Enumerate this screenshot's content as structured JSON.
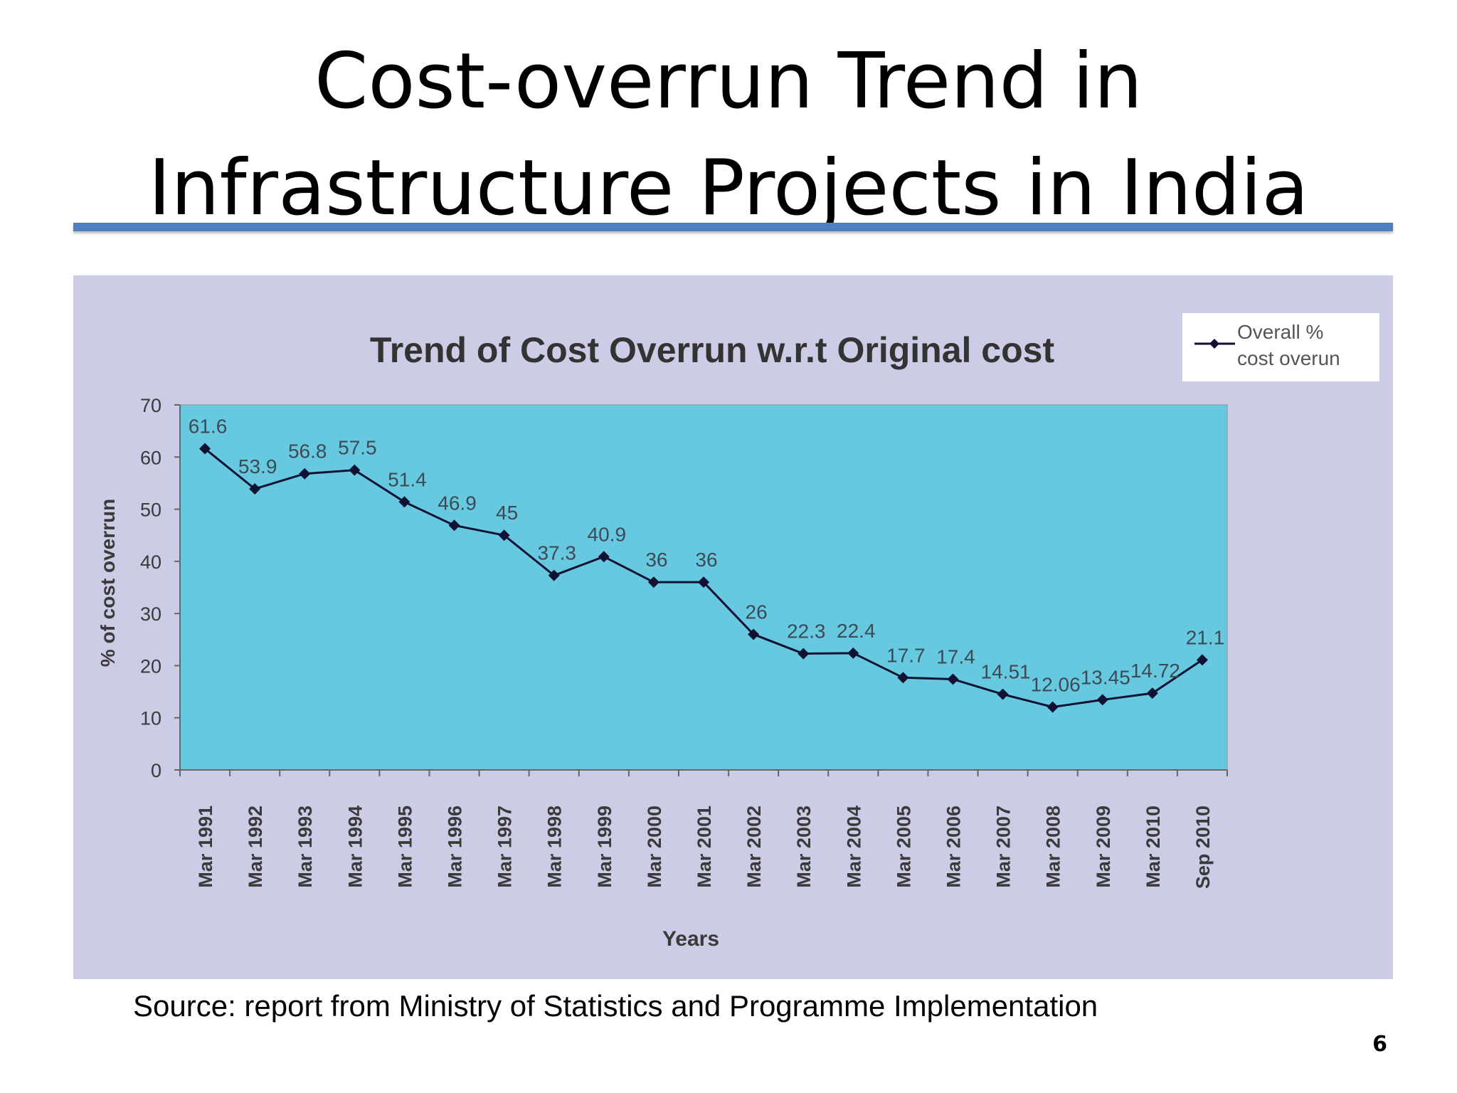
{
  "slide": {
    "title_line1": "Cost-overrun Trend in",
    "title_line2": "Infrastructure Projects in India",
    "source": "Source: report from Ministry of Statistics and Programme Implementation",
    "page_number": "6"
  },
  "colors": {
    "title_rule": "#4f7fc0",
    "panel_background": "#cccce6",
    "plot_background": "#66c9e0",
    "series_line": "#111133",
    "axis_text": "#3a3a3a"
  },
  "chart_data": {
    "type": "line",
    "title": "Trend of Cost Overrun w.r.t Original cost",
    "xlabel": "Years",
    "ylabel": "% of cost overrun",
    "ylim": [
      0,
      70
    ],
    "yticks": [
      0,
      10,
      20,
      30,
      40,
      50,
      60,
      70
    ],
    "grid": false,
    "legend_position": "top-right",
    "categories": [
      "Mar 1991",
      "Mar 1992",
      "Mar 1993",
      "Mar 1994",
      "Mar 1995",
      "Mar 1996",
      "Mar 1997",
      "Mar 1998",
      "Mar 1999",
      "Mar 2000",
      "Mar 2001",
      "Mar 2002",
      "Mar 2003",
      "Mar 2004",
      "Mar 2005",
      "Mar 2006",
      "Mar 2007",
      "Mar 2008",
      "Mar 2009",
      "Mar 2010",
      "Sep 2010"
    ],
    "series": [
      {
        "name": "Overall % cost overun",
        "legend_lines": [
          "Overall %",
          "cost overun"
        ],
        "values": [
          61.6,
          53.9,
          56.8,
          57.5,
          51.4,
          46.9,
          45,
          37.3,
          40.9,
          36,
          36,
          26,
          22.3,
          22.4,
          17.7,
          17.4,
          14.51,
          12.06,
          13.45,
          14.72,
          21.1
        ],
        "labels": [
          "61.6",
          "53.9",
          "56.8",
          "57.5",
          "51.4",
          "46.9",
          "45",
          "37.3",
          "40.9",
          "36",
          "36",
          "26",
          "22.3",
          "22.4",
          "17.7",
          "17.4",
          "14.51",
          "12.06",
          "13.45",
          "14.72",
          "21.1"
        ]
      }
    ]
  }
}
